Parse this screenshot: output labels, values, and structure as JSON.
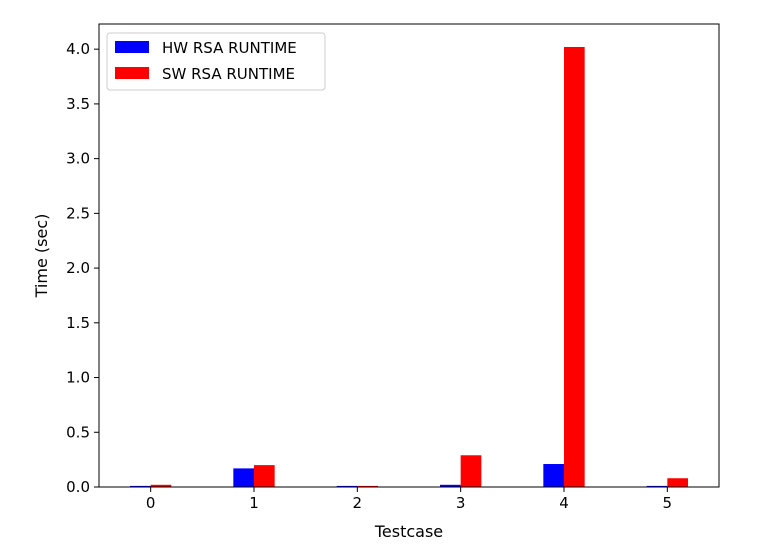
{
  "chart_data": {
    "type": "bar",
    "title": "",
    "xlabel": "Testcase",
    "ylabel": "Time (sec)",
    "categories": [
      "0",
      "1",
      "2",
      "3",
      "4",
      "5"
    ],
    "series": [
      {
        "name": "HW RSA RUNTIME",
        "color": "#0000ff",
        "values": [
          0.01,
          0.17,
          0.01,
          0.02,
          0.21,
          0.01
        ]
      },
      {
        "name": "SW RSA RUNTIME",
        "color": "#ff0000",
        "values": [
          0.02,
          0.2,
          0.01,
          0.29,
          4.02,
          0.08
        ]
      }
    ],
    "ylim": [
      0,
      4.23
    ],
    "yticks": [
      "0.0",
      "0.5",
      "1.0",
      "1.5",
      "2.0",
      "2.5",
      "3.0",
      "3.5",
      "4.0"
    ],
    "grid": false,
    "legend_position": "top-left"
  }
}
